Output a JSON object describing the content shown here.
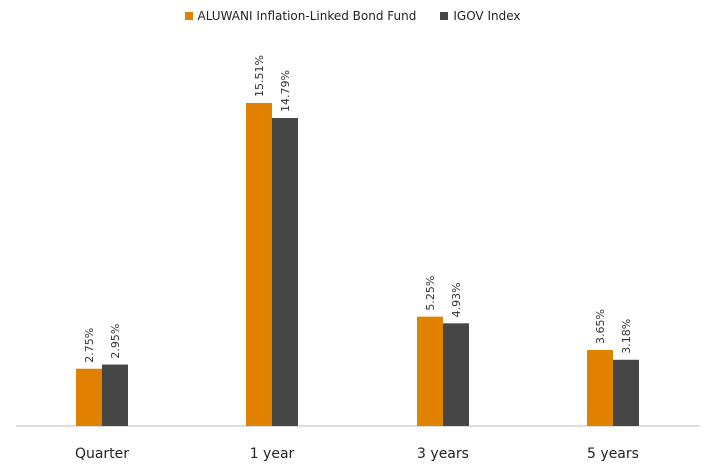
{
  "chart_data": {
    "type": "bar",
    "categories": [
      "Quarter",
      "1 year",
      "3 years",
      "5 years"
    ],
    "series": [
      {
        "name": "ALUWANI Inflation-Linked Bond Fund",
        "values": [
          2.75,
          15.51,
          5.25,
          3.65
        ],
        "labels": [
          "2.75%",
          "15.51%",
          "5.25%",
          "3.65%"
        ],
        "color": "#e08200"
      },
      {
        "name": "IGOV Index",
        "values": [
          2.95,
          14.79,
          4.93,
          3.18
        ],
        "labels": [
          "2.95%",
          "14.79%",
          "4.93%",
          "3.18%"
        ],
        "color": "#464646"
      }
    ],
    "ylim": [
      0,
      15.51
    ],
    "legend": "top-center",
    "grid": false
  }
}
